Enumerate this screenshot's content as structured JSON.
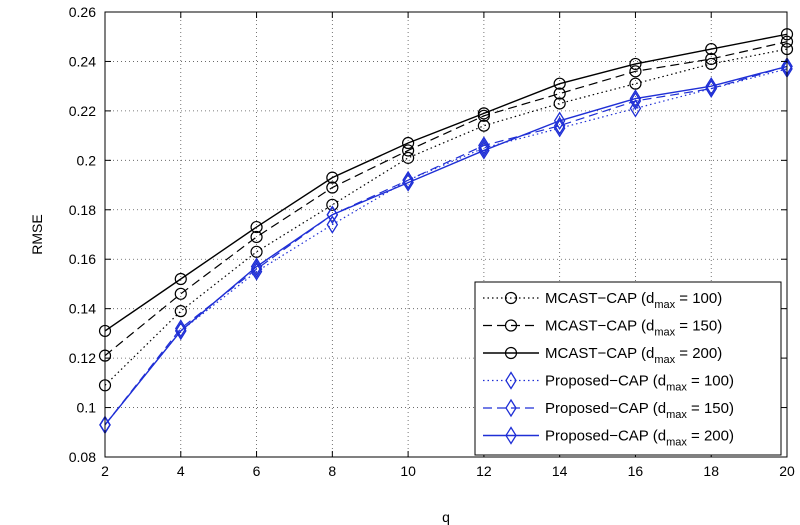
{
  "chart_data": {
    "type": "line",
    "xlabel": "q",
    "ylabel": "RMSE",
    "xlim": [
      2,
      20
    ],
    "ylim": [
      0.08,
      0.26
    ],
    "grid": true,
    "legend_position": "bottom-right",
    "x": [
      2,
      4,
      6,
      8,
      10,
      12,
      14,
      16,
      18,
      20
    ],
    "x_ticks": [
      "2",
      "4",
      "6",
      "8",
      "10",
      "12",
      "14",
      "16",
      "18",
      "20"
    ],
    "y_ticks": [
      0.08,
      0.1,
      0.12,
      0.14,
      0.16,
      0.18,
      0.2,
      0.22,
      0.24,
      0.26
    ],
    "y_tick_labels": [
      "0.08",
      "0.1",
      "0.12",
      "0.14",
      "0.16",
      "0.18",
      "0.2",
      "0.22",
      "0.24",
      "0.26"
    ],
    "series": [
      {
        "name": "MCAST−CAP (d_max = 100)",
        "label_main": "MCAST−CAP  (d",
        "label_sub": "max",
        "label_tail": " = 100)",
        "color": "#000000",
        "dash": "dotted",
        "marker": "circle",
        "values": [
          0.109,
          0.139,
          0.163,
          0.182,
          0.201,
          0.214,
          0.223,
          0.231,
          0.239,
          0.245
        ]
      },
      {
        "name": "MCAST−CAP (d_max = 150)",
        "label_main": "MCAST−CAP  (d",
        "label_sub": "max",
        "label_tail": " = 150)",
        "color": "#000000",
        "dash": "dashed",
        "marker": "circle",
        "values": [
          0.121,
          0.146,
          0.169,
          0.189,
          0.204,
          0.218,
          0.227,
          0.236,
          0.241,
          0.248
        ]
      },
      {
        "name": "MCAST−CAP (d_max = 200)",
        "label_main": "MCAST−CAP  (d",
        "label_sub": "max",
        "label_tail": " = 200)",
        "color": "#000000",
        "dash": "solid",
        "marker": "circle",
        "values": [
          0.131,
          0.152,
          0.173,
          0.193,
          0.207,
          0.219,
          0.231,
          0.239,
          0.245,
          0.251
        ]
      },
      {
        "name": "Proposed−CAP (d_max = 100)",
        "label_main": "Proposed−CAP  (d",
        "label_sub": "max",
        "label_tail": " = 100)",
        "color": "#1f2fd6",
        "dash": "dotted",
        "marker": "diamond",
        "values": [
          0.093,
          0.131,
          0.155,
          0.174,
          0.192,
          0.205,
          0.213,
          0.221,
          0.229,
          0.237
        ]
      },
      {
        "name": "Proposed−CAP (d_max = 150)",
        "label_main": "Proposed−CAP  (d",
        "label_sub": "max",
        "label_tail": " = 150)",
        "color": "#1f2fd6",
        "dash": "dashed",
        "marker": "diamond",
        "values": [
          0.093,
          0.132,
          0.156,
          0.178,
          0.192,
          0.206,
          0.214,
          0.224,
          0.229,
          0.238
        ]
      },
      {
        "name": "Proposed−CAP (d_max = 200)",
        "label_main": "Proposed−CAP  (d",
        "label_sub": "max",
        "label_tail": " = 200)",
        "color": "#1f2fd6",
        "dash": "solid",
        "marker": "diamond",
        "values": [
          0.093,
          0.131,
          0.157,
          0.178,
          0.191,
          0.204,
          0.216,
          0.225,
          0.23,
          0.238
        ]
      }
    ]
  }
}
